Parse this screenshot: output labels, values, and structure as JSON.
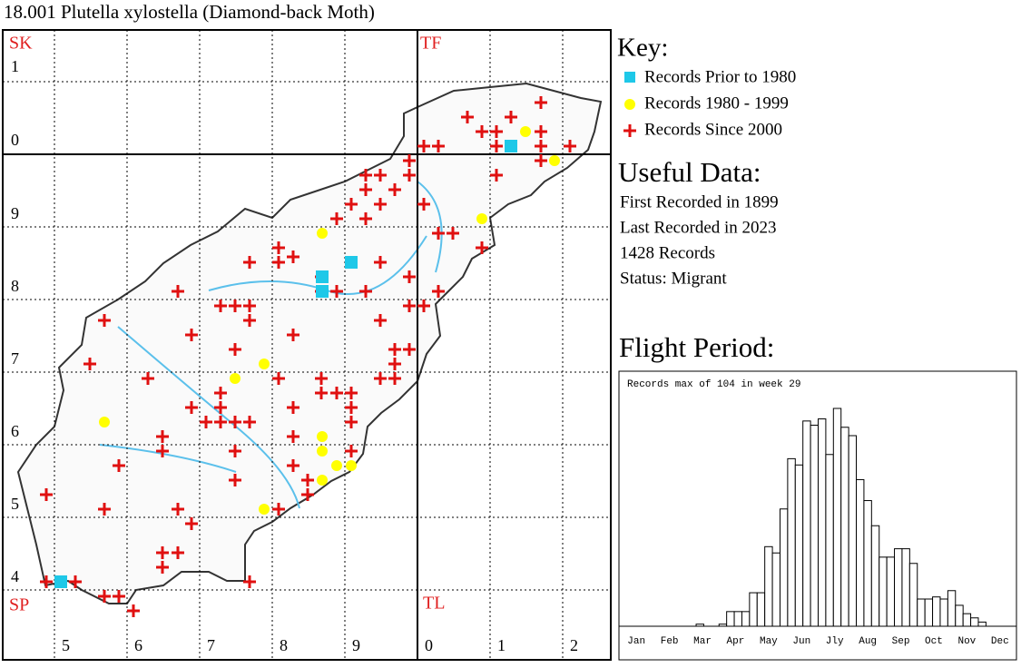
{
  "header": {
    "title": "18.001 Plutella xylostella (Diamond-back Moth)"
  },
  "map": {
    "square_labels": [
      "SK",
      "TF",
      "SP",
      "TL"
    ],
    "row_labels": [
      "1",
      "0",
      "9",
      "8",
      "7",
      "6",
      "5",
      "4"
    ],
    "column_labels": [
      "5",
      "6",
      "7",
      "8",
      "9",
      "0",
      "1",
      "2"
    ]
  },
  "key": {
    "title": "Key:",
    "items": [
      "Records Prior to 1980",
      "Records 1980 - 1999",
      "Records Since 2000"
    ]
  },
  "useful_data": {
    "title": "Useful Data:",
    "lines": [
      "First Recorded in 1899",
      "Last Recorded in 2023",
      "1428 Records",
      "Status: Migrant"
    ]
  },
  "flight_period": {
    "title": "Flight Period:",
    "chart_data": {
      "type": "bar",
      "annotation": "Records max of 104 in week 29",
      "month_labels": [
        "Jan",
        "Feb",
        "Mar",
        "Apr",
        "May",
        "Jun",
        "Jly",
        "Aug",
        "Sep",
        "Oct",
        "Nov",
        "Dec"
      ],
      "values": [
        0,
        0,
        0,
        0,
        0,
        0,
        0,
        0,
        0,
        0,
        1,
        0,
        0,
        1,
        7,
        7,
        7,
        16,
        16,
        38,
        35,
        56,
        80,
        77,
        98,
        96,
        99,
        82,
        104,
        95,
        91,
        70,
        60,
        48,
        33,
        33,
        37,
        37,
        30,
        13,
        13,
        14,
        13,
        17,
        10,
        6,
        4,
        2,
        0,
        0,
        0,
        0
      ]
    }
  }
}
